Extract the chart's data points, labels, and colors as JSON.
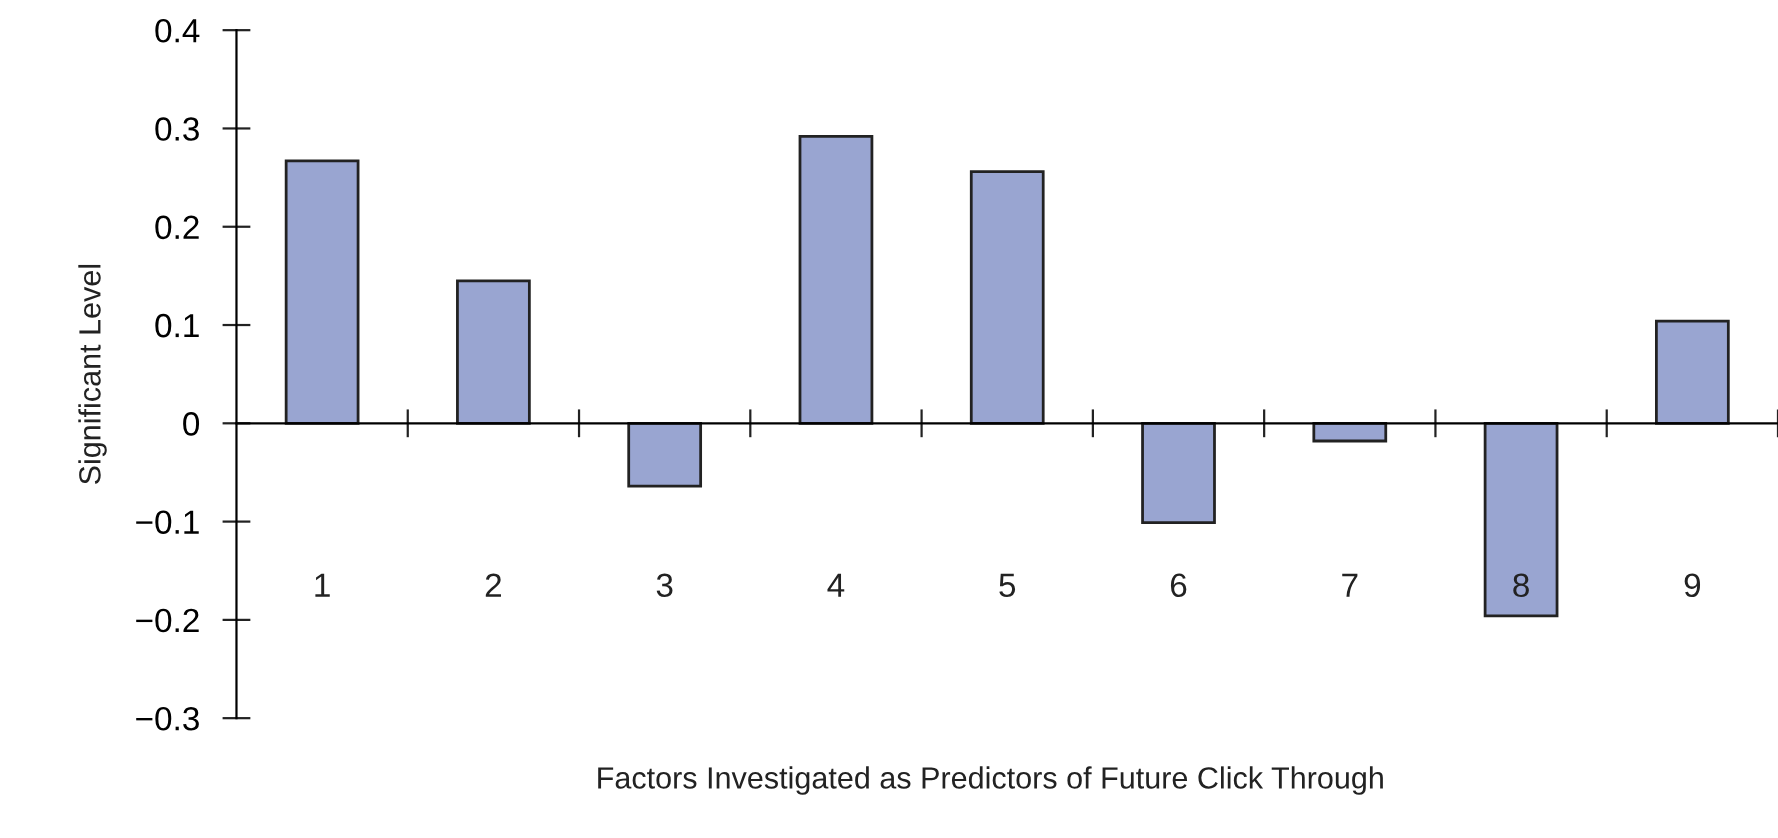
{
  "chart_data": {
    "type": "bar",
    "xlabel": "Factors Investigated as Predictors of Future Click Through",
    "ylabel": "Significant Level",
    "categories": [
      "1",
      "2",
      "3",
      "4",
      "5",
      "6",
      "7",
      "8",
      "9"
    ],
    "values": [
      0.267,
      0.145,
      -0.064,
      0.292,
      0.256,
      -0.101,
      -0.018,
      -0.196,
      0.104
    ],
    "color": "#99a5d1",
    "ylim": [
      -0.3,
      0.4
    ],
    "yticks": [
      {
        "value": -0.3,
        "label": "−0.3"
      },
      {
        "value": -0.2,
        "label": "−0.2"
      },
      {
        "value": -0.1,
        "label": "−0.1"
      },
      0,
      0.1,
      0.2,
      0.3,
      0.4
    ],
    "legend": false
  }
}
